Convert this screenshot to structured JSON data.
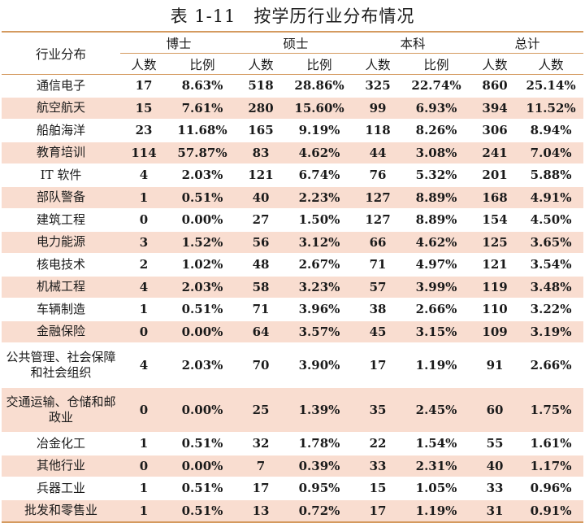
{
  "caption": "表 1-11　按学历行业分布情况",
  "header": {
    "row_head": "行业分布",
    "groups": [
      "博士",
      "硕士",
      "本科",
      "总计"
    ],
    "subheads": [
      "人数",
      "比例",
      "人数",
      "比例",
      "人数",
      "比例",
      "人数",
      "人数"
    ]
  },
  "rows": [
    {
      "industry": "通信电子",
      "cells": [
        "17",
        "8.63%",
        "518",
        "28.86%",
        "325",
        "22.74%",
        "860",
        "25.14%"
      ]
    },
    {
      "industry": "航空航天",
      "cells": [
        "15",
        "7.61%",
        "280",
        "15.60%",
        "99",
        "6.93%",
        "394",
        "11.52%"
      ]
    },
    {
      "industry": "船舶海洋",
      "cells": [
        "23",
        "11.68%",
        "165",
        "9.19%",
        "118",
        "8.26%",
        "306",
        "8.94%"
      ]
    },
    {
      "industry": "教育培训",
      "cells": [
        "114",
        "57.87%",
        "83",
        "4.62%",
        "44",
        "3.08%",
        "241",
        "7.04%"
      ]
    },
    {
      "industry": "IT 软件",
      "cells": [
        "4",
        "2.03%",
        "121",
        "6.74%",
        "76",
        "5.32%",
        "201",
        "5.88%"
      ]
    },
    {
      "industry": "部队警备",
      "cells": [
        "1",
        "0.51%",
        "40",
        "2.23%",
        "127",
        "8.89%",
        "168",
        "4.91%"
      ]
    },
    {
      "industry": "建筑工程",
      "cells": [
        "0",
        "0.00%",
        "27",
        "1.50%",
        "127",
        "8.89%",
        "154",
        "4.50%"
      ]
    },
    {
      "industry": "电力能源",
      "cells": [
        "3",
        "1.52%",
        "56",
        "3.12%",
        "66",
        "4.62%",
        "125",
        "3.65%"
      ]
    },
    {
      "industry": "核电技术",
      "cells": [
        "2",
        "1.02%",
        "48",
        "2.67%",
        "71",
        "4.97%",
        "121",
        "3.54%"
      ]
    },
    {
      "industry": "机械工程",
      "cells": [
        "4",
        "2.03%",
        "58",
        "3.23%",
        "57",
        "3.99%",
        "119",
        "3.48%"
      ]
    },
    {
      "industry": "车辆制造",
      "cells": [
        "1",
        "0.51%",
        "71",
        "3.96%",
        "38",
        "2.66%",
        "110",
        "3.22%"
      ]
    },
    {
      "industry": "金融保险",
      "cells": [
        "0",
        "0.00%",
        "64",
        "3.57%",
        "45",
        "3.15%",
        "109",
        "3.19%"
      ]
    },
    {
      "industry": "公共管理、社会保障和社会组织",
      "cells": [
        "4",
        "2.03%",
        "70",
        "3.90%",
        "17",
        "1.19%",
        "91",
        "2.66%"
      ]
    },
    {
      "industry": "交通运输、仓储和邮政业",
      "cells": [
        "0",
        "0.00%",
        "25",
        "1.39%",
        "35",
        "2.45%",
        "60",
        "1.75%"
      ]
    },
    {
      "industry": "冶金化工",
      "cells": [
        "1",
        "0.51%",
        "32",
        "1.78%",
        "22",
        "1.54%",
        "55",
        "1.61%"
      ]
    },
    {
      "industry": "其他行业",
      "cells": [
        "0",
        "0.00%",
        "7",
        "0.39%",
        "33",
        "2.31%",
        "40",
        "1.17%"
      ]
    },
    {
      "industry": "兵器工业",
      "cells": [
        "1",
        "0.51%",
        "17",
        "0.95%",
        "15",
        "1.05%",
        "33",
        "0.96%"
      ]
    },
    {
      "industry": "批发和零售业",
      "cells": [
        "1",
        "0.51%",
        "13",
        "0.72%",
        "17",
        "1.19%",
        "31",
        "0.91%"
      ]
    }
  ],
  "colors": {
    "rule": "#d49a5f",
    "stripe": "#f9ddd0"
  }
}
